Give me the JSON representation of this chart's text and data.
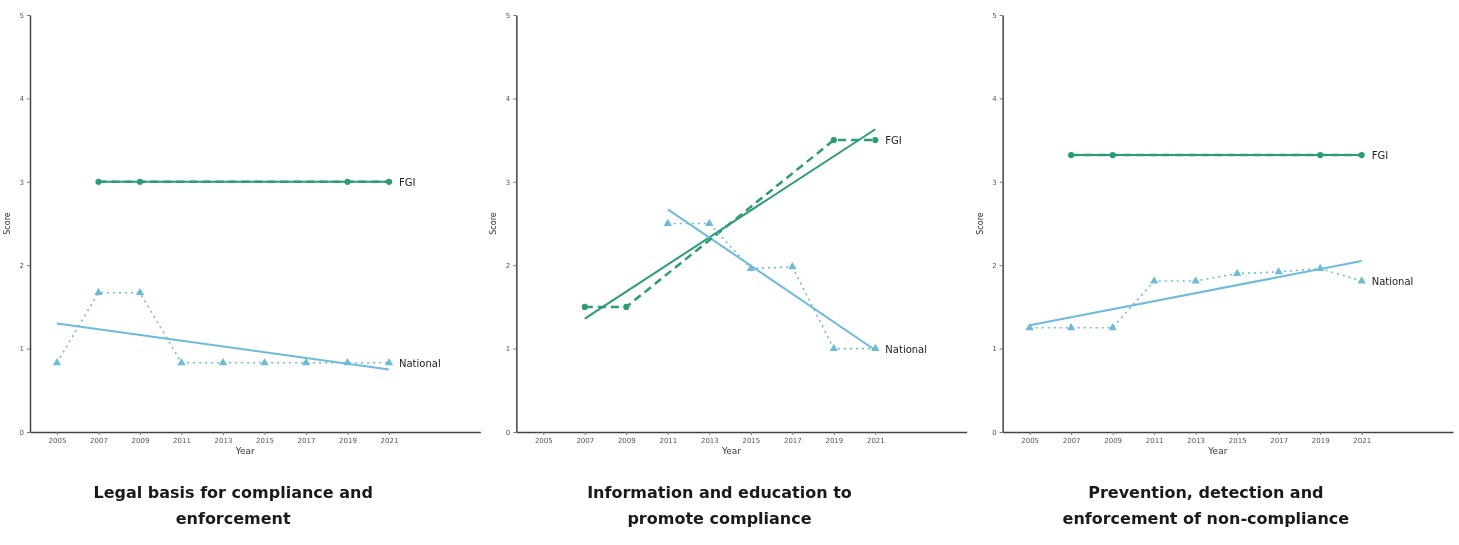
{
  "chart_data": [
    {
      "type": "line",
      "title": "Legal basis for compliance and enforcement",
      "xlabel": "Year",
      "ylabel": "Score",
      "xlim": [
        2003.7,
        2025.4
      ],
      "xticks": [
        2005,
        2007,
        2009,
        2011,
        2013,
        2015,
        2017,
        2019,
        2021
      ],
      "ylim": [
        0,
        5
      ],
      "yticks": [
        0,
        1,
        2,
        3,
        4,
        5
      ],
      "series": [
        {
          "name": "FGI",
          "color": "#2a9d78",
          "x": [
            2007,
            2009,
            2019,
            2021
          ],
          "values": [
            3,
            3,
            3,
            3
          ],
          "marker": "circle",
          "line_style": "dashed"
        },
        {
          "color": "#2a9d78",
          "x": [
            2007,
            2021
          ],
          "values": [
            3,
            3
          ],
          "marker": "none",
          "line_style": "solid"
        },
        {
          "name": "National",
          "color": "#6cbcd8",
          "x": [
            2005,
            2007,
            2009,
            2011,
            2013,
            2015,
            2017,
            2019,
            2021
          ],
          "values": [
            0.83,
            1.67,
            1.67,
            0.83,
            0.83,
            0.83,
            0.83,
            0.83,
            0.83
          ],
          "marker": "triangle",
          "line_style": "dotted"
        },
        {
          "color": "#6cbcd8",
          "x": [
            2005,
            2021
          ],
          "values": [
            1.3,
            0.75
          ],
          "marker": "none",
          "line_style": "solid"
        }
      ]
    },
    {
      "type": "line",
      "title": "Information and education to promote compliance",
      "xlabel": "Year",
      "ylabel": "Score",
      "xlim": [
        2003.7,
        2025.4
      ],
      "xticks": [
        2005,
        2007,
        2009,
        2011,
        2013,
        2015,
        2017,
        2019,
        2021
      ],
      "ylim": [
        0,
        5
      ],
      "yticks": [
        0,
        1,
        2,
        3,
        4,
        5
      ],
      "series": [
        {
          "name": "FGI",
          "color": "#2a9d78",
          "x": [
            2007,
            2009,
            2019,
            2021
          ],
          "values": [
            1.5,
            1.5,
            3.5,
            3.5
          ],
          "marker": "circle",
          "line_style": "dashed"
        },
        {
          "color": "#2a9d78",
          "x": [
            2007,
            2021
          ],
          "values": [
            1.36,
            3.63
          ],
          "marker": "none",
          "line_style": "solid"
        },
        {
          "name": "National",
          "color": "#6cbcd8",
          "x": [
            2011,
            2013,
            2015,
            2017,
            2019,
            2021
          ],
          "values": [
            2.5,
            2.5,
            1.96,
            1.98,
            1,
            1
          ],
          "marker": "triangle",
          "line_style": "dotted"
        },
        {
          "color": "#6cbcd8",
          "x": [
            2011,
            2021
          ],
          "values": [
            2.67,
            0.98
          ],
          "marker": "none",
          "line_style": "solid"
        }
      ]
    },
    {
      "type": "line",
      "title": "Prevention, detection and enforcement of non-compliance",
      "xlabel": "Year",
      "ylabel": "Score",
      "xlim": [
        2003.7,
        2025.4
      ],
      "xticks": [
        2005,
        2007,
        2009,
        2011,
        2013,
        2015,
        2017,
        2019,
        2021
      ],
      "ylim": [
        0,
        5
      ],
      "yticks": [
        0,
        1,
        2,
        3,
        4,
        5
      ],
      "series": [
        {
          "name": "FGI",
          "color": "#2a9d78",
          "x": [
            2007,
            2009,
            2019,
            2021
          ],
          "values": [
            3.32,
            3.32,
            3.32,
            3.32
          ],
          "marker": "circle",
          "line_style": "dashed"
        },
        {
          "color": "#2a9d78",
          "x": [
            2007,
            2021
          ],
          "values": [
            3.32,
            3.32
          ],
          "marker": "none",
          "line_style": "solid"
        },
        {
          "name": "National",
          "color": "#6cbcd8",
          "x": [
            2005,
            2007,
            2009,
            2011,
            2013,
            2015,
            2017,
            2019,
            2021
          ],
          "values": [
            1.25,
            1.25,
            1.25,
            1.81,
            1.81,
            1.9,
            1.92,
            1.96,
            1.81
          ],
          "marker": "triangle",
          "line_style": "dotted"
        },
        {
          "color": "#6cbcd8",
          "x": [
            2005,
            2021
          ],
          "values": [
            1.28,
            2.05
          ],
          "marker": "none",
          "line_style": "solid"
        }
      ]
    }
  ]
}
